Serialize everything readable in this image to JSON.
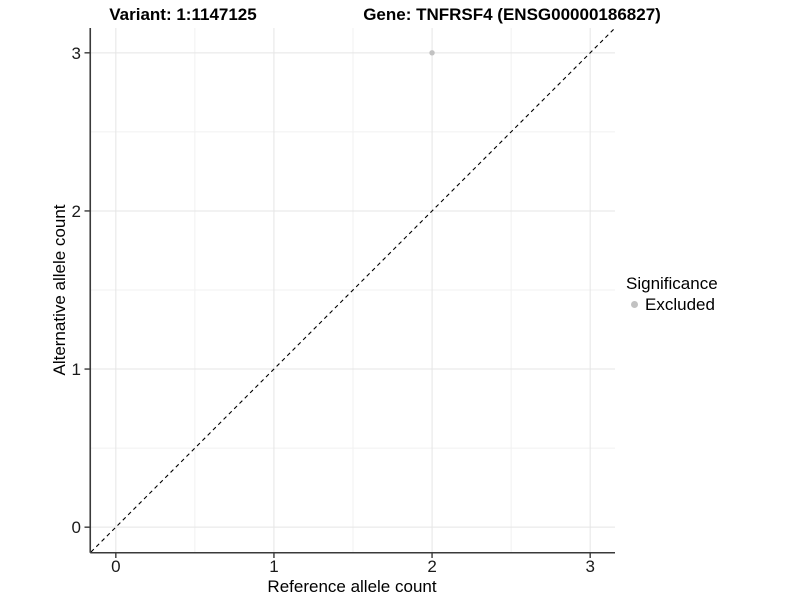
{
  "titles": {
    "variant": "Variant: 1:1147125",
    "gene": "Gene: TNFRSF4 (ENSG00000186827)"
  },
  "chart_data": {
    "type": "scatter",
    "title_left": "Variant: 1:1147125",
    "title_right": "Gene: TNFRSF4 (ENSG00000186827)",
    "xlabel": "Reference allele count",
    "ylabel": "Alternative allele count",
    "xlim": [
      -0.157,
      3.157
    ],
    "ylim": [
      -0.157,
      3.157
    ],
    "x_ticks": [
      0,
      1,
      2,
      3
    ],
    "y_ticks": [
      0,
      1,
      2,
      3
    ],
    "x_minor_ticks": [
      0.5,
      1.5,
      2.5
    ],
    "y_minor_ticks": [
      0.5,
      1.5,
      2.5
    ],
    "grid": true,
    "legend_position": "right",
    "series": [
      {
        "name": "Excluded",
        "color": "#c2c2c2",
        "points": [
          {
            "x": 2,
            "y": 3
          }
        ]
      }
    ],
    "reference_line": {
      "style": "dashed",
      "slope": 1,
      "intercept": 0,
      "color": "#000000"
    },
    "legend": {
      "title": "Significance",
      "entries": [
        {
          "label": "Excluded",
          "color": "#c2c2c2"
        }
      ]
    },
    "colors": {
      "grid_major": "#e5e5e5",
      "grid_minor": "#f1f1f1",
      "axis_line": "#3a3a3a",
      "tick_label": "#1a1a1a",
      "point": "#c2c2c2"
    }
  }
}
